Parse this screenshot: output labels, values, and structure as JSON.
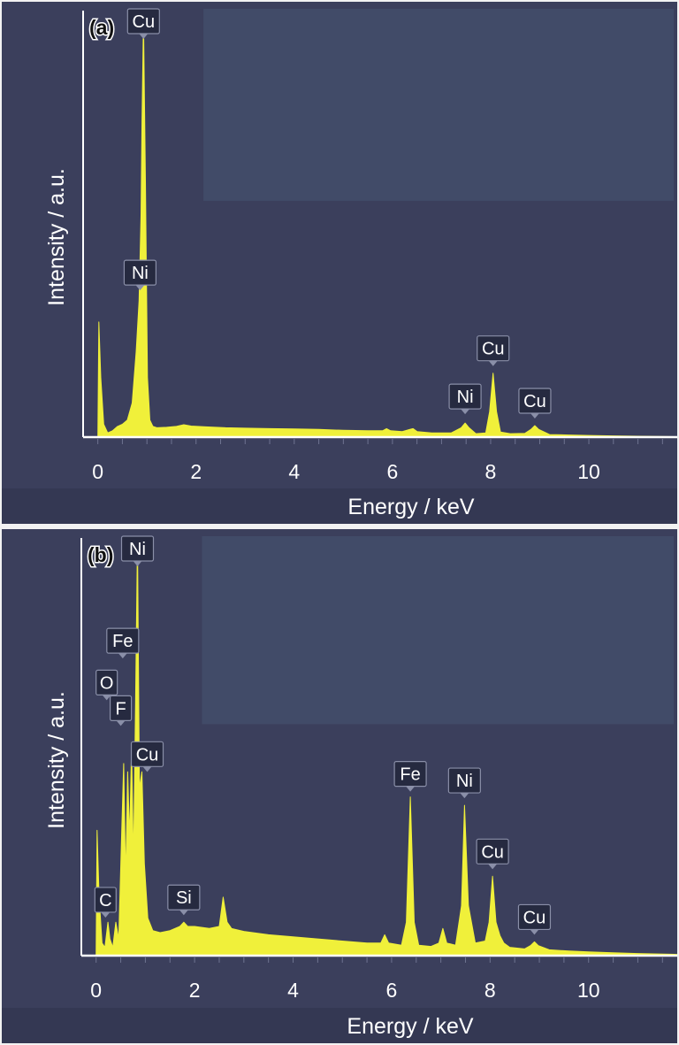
{
  "chart_data": [
    {
      "type": "line",
      "panel": "(a)",
      "xlabel": "Energy / keV",
      "ylabel": "Intensity / a.u.",
      "xlim": [
        -0.3,
        11.8
      ],
      "ylim": [
        0,
        100
      ],
      "xticks": [
        0,
        2,
        4,
        6,
        8,
        10
      ],
      "series_color": "#f0f03a",
      "spectrum": {
        "x": [
          -0.1,
          0.0,
          0.02,
          0.06,
          0.12,
          0.2,
          0.3,
          0.4,
          0.5,
          0.6,
          0.7,
          0.78,
          0.84,
          0.88,
          0.9,
          0.93,
          0.97,
          1.01,
          1.06,
          1.12,
          1.2,
          1.4,
          1.6,
          1.75,
          1.9,
          2.2,
          2.6,
          3.0,
          3.5,
          4.0,
          4.5,
          5.0,
          5.5,
          5.8,
          5.88,
          5.96,
          6.2,
          6.35,
          6.42,
          6.5,
          6.8,
          7.2,
          7.4,
          7.48,
          7.56,
          7.7,
          7.9,
          7.98,
          8.05,
          8.12,
          8.2,
          8.4,
          8.7,
          8.82,
          8.9,
          8.98,
          9.2,
          9.6,
          10.0,
          10.5,
          11.0,
          11.8
        ],
        "y": [
          0,
          0,
          27,
          14,
          3,
          1,
          1.5,
          2.5,
          3,
          4,
          8,
          20,
          32,
          52,
          74,
          98,
          60,
          14,
          4,
          2.5,
          2.2,
          2.3,
          2.5,
          2.9,
          2.6,
          2.4,
          2.2,
          2.1,
          2.0,
          1.9,
          1.8,
          1.6,
          1.5,
          1.5,
          2.0,
          1.5,
          1.3,
          1.8,
          2.0,
          1.3,
          1.0,
          1.0,
          2.2,
          3.3,
          2.2,
          0.8,
          1.0,
          6,
          15,
          6,
          1.2,
          0.8,
          0.9,
          1.8,
          2.7,
          1.8,
          0.6,
          0.5,
          0.4,
          0.3,
          0.2,
          0.1
        ]
      },
      "peak_labels": [
        {
          "text": "Cu",
          "x": 0.93,
          "y": 98
        },
        {
          "text": "Ni",
          "x": 0.86,
          "y": 34
        },
        {
          "text": "Ni",
          "x": 7.48,
          "y": 3.3
        },
        {
          "text": "Cu",
          "x": 8.05,
          "y": 15
        },
        {
          "text": "Cu",
          "x": 8.9,
          "y": 2.7
        }
      ]
    },
    {
      "type": "line",
      "panel": "(b)",
      "xlabel": "Energy / keV",
      "ylabel": "Intensity / a.u.",
      "xlim": [
        -0.3,
        11.8
      ],
      "ylim": [
        0,
        100
      ],
      "xticks": [
        0,
        2,
        4,
        6,
        8,
        10
      ],
      "series_color": "#f0f03a",
      "spectrum": {
        "x": [
          -0.1,
          0.0,
          0.02,
          0.06,
          0.12,
          0.18,
          0.24,
          0.28,
          0.34,
          0.4,
          0.46,
          0.52,
          0.56,
          0.6,
          0.64,
          0.68,
          0.72,
          0.76,
          0.8,
          0.84,
          0.88,
          0.93,
          0.98,
          1.05,
          1.15,
          1.3,
          1.5,
          1.7,
          1.78,
          1.86,
          2.0,
          2.3,
          2.5,
          2.58,
          2.66,
          2.75,
          3.0,
          3.5,
          4.0,
          4.5,
          5.0,
          5.5,
          5.78,
          5.86,
          5.94,
          6.2,
          6.3,
          6.38,
          6.46,
          6.55,
          6.8,
          6.96,
          7.04,
          7.12,
          7.3,
          7.42,
          7.48,
          7.56,
          7.7,
          7.9,
          7.98,
          8.05,
          8.12,
          8.2,
          8.28,
          8.4,
          8.7,
          8.82,
          8.9,
          8.98,
          9.2,
          9.6,
          10.0,
          10.5,
          11.0,
          11.8
        ],
        "y": [
          0,
          0,
          30,
          14,
          3,
          2,
          8,
          4,
          2,
          8,
          4,
          30,
          46,
          18,
          44,
          28,
          50,
          22,
          60,
          100,
          40,
          44,
          22,
          9,
          6,
          5.5,
          6,
          7,
          8,
          7,
          7,
          6.5,
          7,
          14,
          8,
          6.5,
          5.8,
          5,
          4.5,
          4,
          3.5,
          3,
          3,
          5,
          3,
          2.5,
          8,
          38,
          8,
          2.5,
          2.2,
          3,
          6.5,
          3,
          2.5,
          12,
          36,
          12,
          3,
          3.5,
          8,
          19,
          8,
          4.8,
          3,
          2,
          1.6,
          2.4,
          3.3,
          2.4,
          1.4,
          1.1,
          0.9,
          0.7,
          0.5,
          0.3
        ]
      },
      "peak_labels": [
        {
          "text": "Ni",
          "x": 0.84,
          "y": 100
        },
        {
          "text": "Fe",
          "x": 0.72,
          "y": 72
        },
        {
          "text": "O",
          "x": 0.52,
          "y": 62
        },
        {
          "text": "F",
          "x": 0.68,
          "y": 55
        },
        {
          "text": "Cu",
          "x": 0.93,
          "y": 44
        },
        {
          "text": "C",
          "x": 0.28,
          "y": 7
        },
        {
          "text": "Si",
          "x": 1.78,
          "y": 8
        },
        {
          "text": "Fe",
          "x": 6.38,
          "y": 38
        },
        {
          "text": "Ni",
          "x": 7.48,
          "y": 36
        },
        {
          "text": "Cu",
          "x": 8.05,
          "y": 19
        },
        {
          "text": "Cu",
          "x": 8.9,
          "y": 3.3
        }
      ]
    }
  ]
}
